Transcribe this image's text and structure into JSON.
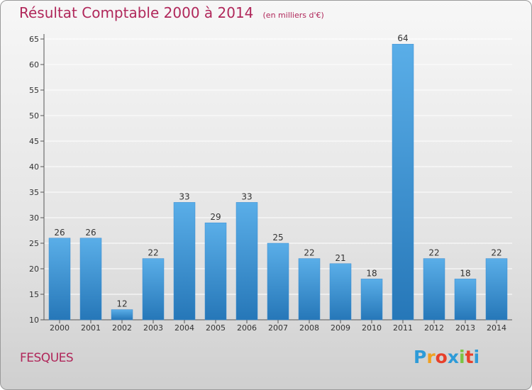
{
  "header": {
    "title": "Résultat Comptable 2000 à 2014",
    "unit": "(en milliers d'€)"
  },
  "commune": "FESQUES",
  "logo": {
    "text": "Proxiti",
    "letters": [
      "P",
      "r",
      "o",
      "x",
      "i",
      "t",
      "i"
    ],
    "colors": [
      "#2e9bd8",
      "#f0a020",
      "#e8402a",
      "#2e9bd8",
      "#7cc242",
      "#e8402a",
      "#2e9bd8"
    ]
  },
  "colors": {
    "bar_light": "#5aaee8",
    "bar_dark": "#2677b8",
    "title": "#b0275a",
    "grid": "#ffffff"
  },
  "chart_data": {
    "type": "bar",
    "title": "Résultat Comptable 2000 à 2014",
    "subtitle": "(en milliers d'€)",
    "xlabel": "",
    "ylabel": "",
    "categories": [
      "2000",
      "2001",
      "2002",
      "2003",
      "2004",
      "2005",
      "2006",
      "2007",
      "2008",
      "2009",
      "2010",
      "2011",
      "2012",
      "2013",
      "2014"
    ],
    "values": [
      26,
      26,
      12,
      22,
      33,
      29,
      33,
      25,
      22,
      21,
      18,
      64,
      22,
      18,
      22
    ],
    "ylim": [
      10,
      65
    ],
    "yticks": [
      10,
      15,
      20,
      25,
      30,
      35,
      40,
      45,
      50,
      55,
      60,
      65
    ],
    "grid": true,
    "legend": "none"
  }
}
